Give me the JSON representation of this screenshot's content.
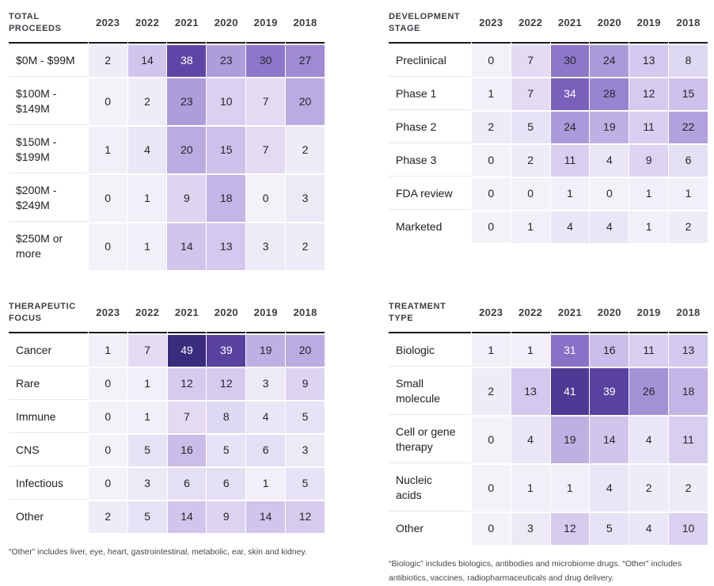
{
  "heat_scale": {
    "stops": [
      [
        0,
        "#f4f2f9"
      ],
      [
        4,
        "#eae6f6"
      ],
      [
        7,
        "#e2dbf3"
      ],
      [
        10,
        "#dad1f0"
      ],
      [
        14,
        "#d1c5ec"
      ],
      [
        18,
        "#c3b5e6"
      ],
      [
        22,
        "#b1a1dc"
      ],
      [
        26,
        "#a392d6"
      ],
      [
        30,
        "#8d77c9"
      ],
      [
        34,
        "#7a5fbb"
      ],
      [
        38,
        "#5f46a6"
      ],
      [
        41,
        "#4e3a94"
      ],
      [
        45,
        "#443289"
      ],
      [
        49,
        "#3a2b7d"
      ]
    ],
    "white_text_above": 30,
    "cell_text": "#26262b",
    "white_text": "#ffffff"
  },
  "chart_data": [
    {
      "type": "heatmap",
      "title": "TOTAL\nPROCEEDS",
      "columns": [
        "2023",
        "2022",
        "2021",
        "2020",
        "2019",
        "2018"
      ],
      "rows": [
        {
          "label": "$0M - $99M",
          "values": [
            2,
            14,
            38,
            23,
            30,
            27
          ]
        },
        {
          "label": "$100M -\n$149M",
          "values": [
            0,
            2,
            23,
            10,
            7,
            20
          ]
        },
        {
          "label": "$150M -\n$199M",
          "values": [
            1,
            4,
            20,
            15,
            7,
            2
          ]
        },
        {
          "label": "$200M -\n$249M",
          "values": [
            0,
            1,
            9,
            18,
            0,
            3
          ]
        },
        {
          "label": "$250M or\nmore",
          "values": [
            0,
            1,
            14,
            13,
            3,
            2
          ]
        }
      ]
    },
    {
      "type": "heatmap",
      "title": "DEVELOPMENT\nSTAGE",
      "columns": [
        "2023",
        "2022",
        "2021",
        "2020",
        "2019",
        "2018"
      ],
      "rows": [
        {
          "label": "Preclinical",
          "values": [
            0,
            7,
            30,
            24,
            13,
            8
          ]
        },
        {
          "label": "Phase 1",
          "values": [
            1,
            7,
            34,
            28,
            12,
            15
          ]
        },
        {
          "label": "Phase 2",
          "values": [
            2,
            5,
            24,
            19,
            11,
            22
          ]
        },
        {
          "label": "Phase 3",
          "values": [
            0,
            2,
            11,
            4,
            9,
            6
          ]
        },
        {
          "label": "FDA review",
          "values": [
            0,
            0,
            1,
            0,
            1,
            1
          ]
        },
        {
          "label": "Marketed",
          "values": [
            0,
            1,
            4,
            4,
            1,
            2
          ]
        }
      ]
    },
    {
      "type": "heatmap",
      "title": "THERAPEUTIC\nFOCUS",
      "columns": [
        "2023",
        "2022",
        "2021",
        "2020",
        "2019",
        "2018"
      ],
      "rows": [
        {
          "label": "Cancer",
          "values": [
            1,
            7,
            49,
            39,
            19,
            20
          ]
        },
        {
          "label": "Rare",
          "values": [
            0,
            1,
            12,
            12,
            3,
            9
          ]
        },
        {
          "label": "Immune",
          "values": [
            0,
            1,
            7,
            8,
            4,
            5
          ]
        },
        {
          "label": "CNS",
          "values": [
            0,
            5,
            16,
            5,
            6,
            3
          ]
        },
        {
          "label": "Infectious",
          "values": [
            0,
            3,
            6,
            6,
            1,
            5
          ]
        },
        {
          "label": "Other",
          "values": [
            2,
            5,
            14,
            9,
            14,
            12
          ]
        }
      ]
    },
    {
      "type": "heatmap",
      "title": "TREATMENT\nTYPE",
      "columns": [
        "2023",
        "2022",
        "2021",
        "2020",
        "2019",
        "2018"
      ],
      "rows": [
        {
          "label": "Biologic",
          "values": [
            1,
            1,
            31,
            16,
            11,
            13
          ]
        },
        {
          "label": "Small\nmolecule",
          "values": [
            2,
            13,
            41,
            39,
            26,
            18
          ]
        },
        {
          "label": "Cell or gene\ntherapy",
          "values": [
            0,
            4,
            19,
            14,
            4,
            11
          ]
        },
        {
          "label": "Nucleic\nacids",
          "values": [
            0,
            1,
            1,
            4,
            2,
            2
          ]
        },
        {
          "label": "Other",
          "values": [
            0,
            3,
            12,
            5,
            4,
            10
          ]
        }
      ]
    }
  ],
  "footnotes": {
    "therapeutic": "“Other” includes liver, eye, heart, gastrointestinal, metabolic, ear, skin and kidney.",
    "treatment": "“Biologic” includes biologics, antibodies and microbiome drugs. “Other” includes antibiotics, vaccines, radiopharmaceuticals and drug delivery."
  }
}
